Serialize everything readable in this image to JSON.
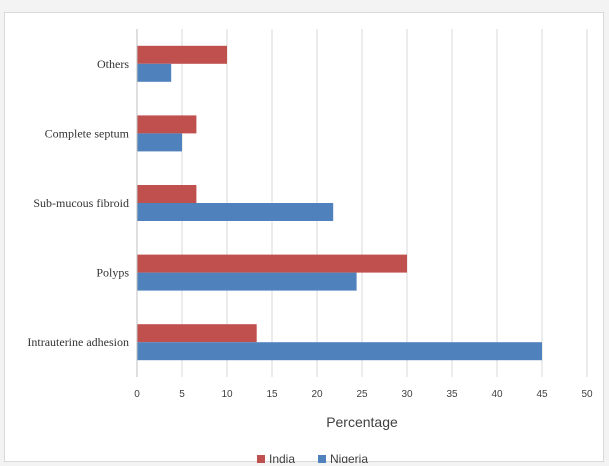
{
  "chart_data": {
    "type": "bar",
    "orientation": "horizontal",
    "categories": [
      "Intrauterine adhesion",
      "Polyps",
      "Sub-mucous fibroid",
      "Complete septum",
      "Others"
    ],
    "series": [
      {
        "name": "India",
        "color": "#c0504d",
        "values": [
          13.3,
          30,
          6.6,
          6.6,
          10
        ]
      },
      {
        "name": "Nigeria",
        "color": "#4f81bd",
        "values": [
          45,
          24.4,
          21.8,
          5,
          3.8
        ]
      }
    ],
    "xlabel": "Percentage",
    "xlim": [
      0,
      50
    ],
    "xticks": [
      "0",
      "5",
      "10",
      "15",
      "20",
      "25",
      "30",
      "35",
      "40",
      "45",
      "50"
    ],
    "grid": true,
    "legend_position": "bottom"
  }
}
